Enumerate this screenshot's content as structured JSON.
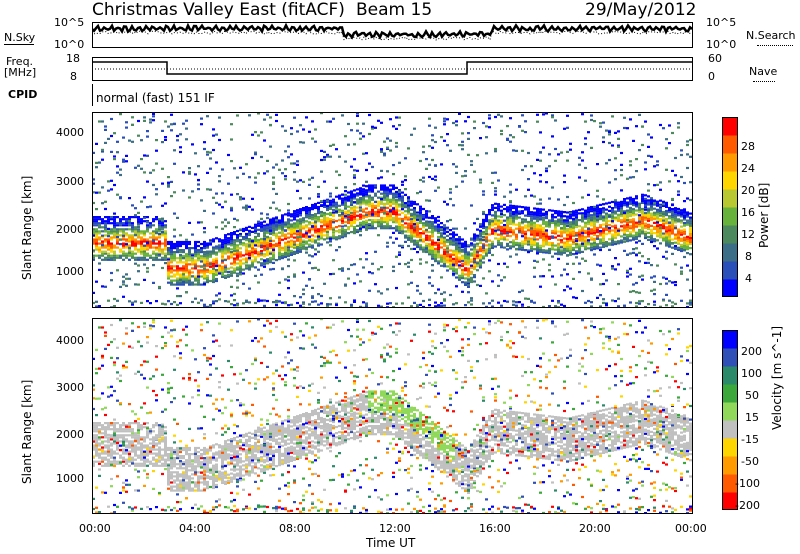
{
  "header": {
    "station": "Christmas Valley East (fitACF)",
    "beam": "Beam 15",
    "date": "29/May/2012"
  },
  "noise_panel": {
    "left_label": "N.Sky",
    "right_label": "N.Search",
    "left_ticks": [
      "10^5",
      "10^0"
    ],
    "right_ticks": [
      "10^5",
      "10^0"
    ]
  },
  "freq_panel": {
    "left_label_1": "Freq.",
    "left_label_2": "[MHz]",
    "right_label": "Nave",
    "left_ticks": [
      "18",
      "8"
    ],
    "right_ticks": [
      "60",
      "0"
    ]
  },
  "cpid_panel": {
    "label": "CPID",
    "mode_text": "normal (fast) 151 IF"
  },
  "x_axis": {
    "label": "Time UT",
    "ticks": [
      "00:00",
      "04:00",
      "08:00",
      "12:00",
      "16:00",
      "20:00",
      "00:00"
    ]
  },
  "chart_data": [
    {
      "type": "heatmap",
      "name": "power",
      "ylabel": "Slant Range [km]",
      "yticks": [
        1000,
        2000,
        3000,
        4000
      ],
      "ylim": [
        180,
        4500
      ],
      "xlim_hours": [
        0,
        24
      ],
      "colorbar_label": "Power [dB]",
      "colorbar_ticks": [
        28,
        24,
        20,
        16,
        12,
        8,
        4
      ],
      "colorbar_range": [
        0,
        30
      ],
      "colors": [
        "#0000ff",
        "#2b4fb8",
        "#3d6e87",
        "#4c8a5e",
        "#66b23a",
        "#b8c830",
        "#ffd500",
        "#ff9a00",
        "#ff5a00",
        "#ff0000"
      ]
    },
    {
      "type": "heatmap",
      "name": "velocity",
      "ylabel": "Slant Range [km]",
      "yticks": [
        1000,
        2000,
        3000,
        4000
      ],
      "ylim": [
        180,
        4500
      ],
      "xlim_hours": [
        0,
        24
      ],
      "colorbar_label": "Velocity [m s^-1]",
      "colorbar_ticks": [
        200,
        100,
        50,
        15,
        -15,
        -50,
        -100,
        -200
      ],
      "colorbar_range": [
        -250,
        250
      ],
      "colors": [
        "#ff0000",
        "#ff5a00",
        "#ff9a00",
        "#ffd500",
        "#c0c0c0",
        "#8fd85a",
        "#3aa83a",
        "#2b8a6a",
        "#3050b8",
        "#0000ff"
      ]
    }
  ]
}
